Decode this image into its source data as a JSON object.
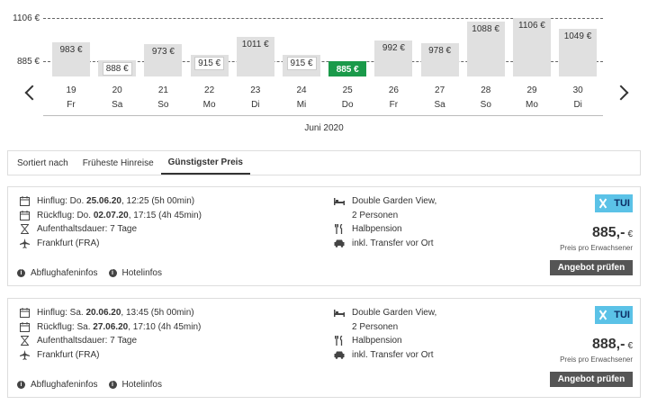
{
  "chart_data": {
    "type": "bar",
    "y_ticks": [
      "1106 €",
      "885 €"
    ],
    "ylim": [
      830,
      1106
    ],
    "selected_index": 6,
    "categories": [
      {
        "day": "19",
        "weekday": "Fr"
      },
      {
        "day": "20",
        "weekday": "Sa"
      },
      {
        "day": "21",
        "weekday": "So"
      },
      {
        "day": "22",
        "weekday": "Mo"
      },
      {
        "day": "23",
        "weekday": "Di"
      },
      {
        "day": "24",
        "weekday": "Mi"
      },
      {
        "day": "25",
        "weekday": "Do"
      },
      {
        "day": "26",
        "weekday": "Fr"
      },
      {
        "day": "27",
        "weekday": "Sa"
      },
      {
        "day": "28",
        "weekday": "So"
      },
      {
        "day": "29",
        "weekday": "Mo"
      },
      {
        "day": "30",
        "weekday": "Di"
      }
    ],
    "values": [
      983,
      888,
      973,
      915,
      1011,
      915,
      885,
      992,
      978,
      1088,
      1106,
      1049
    ],
    "value_labels": [
      "983 €",
      "888 €",
      "973 €",
      "915 €",
      "1011 €",
      "915 €",
      "885 €",
      "992 €",
      "978 €",
      "1088 €",
      "1106 €",
      "1049 €"
    ],
    "xlabel": "Juni 2020",
    "selected_color": "#1a9a4a",
    "bar_color": "#e0e0e0"
  },
  "sort": {
    "label": "Sortiert nach",
    "options": [
      "Früheste Hinreise",
      "Günstigster Preis"
    ],
    "active_index": 1
  },
  "offers": [
    {
      "outbound_prefix": "Hinflug: Do. ",
      "outbound_date": "25.06.20",
      "outbound_suffix": ", 12:25 (5h 00min)",
      "return_prefix": "Rückflug: Do. ",
      "return_date": "02.07.20",
      "return_suffix": ", 17:15 (4h 45min)",
      "stay": "Aufenthaltsdauer: 7 Tage",
      "airport": "Frankfurt (FRA)",
      "room": "Double Garden View,",
      "persons": "2 Personen",
      "board": "Halbpension",
      "transfer": "inkl. Transfer vor Ort",
      "logo_text": "TUI",
      "price": "885,-",
      "currency": "€",
      "price_note": "Preis pro Erwachsener",
      "cta": "Angebot prüfen",
      "airport_info": "Abflughafeninfos",
      "hotel_info": "Hotelinfos"
    },
    {
      "outbound_prefix": "Hinflug: Sa. ",
      "outbound_date": "20.06.20",
      "outbound_suffix": ", 13:45 (5h 00min)",
      "return_prefix": "Rückflug: Sa. ",
      "return_date": "27.06.20",
      "return_suffix": ", 17:10 (4h 45min)",
      "stay": "Aufenthaltsdauer: 7 Tage",
      "airport": "Frankfurt (FRA)",
      "room": "Double Garden View,",
      "persons": "2 Personen",
      "board": "Halbpension",
      "transfer": "inkl. Transfer vor Ort",
      "logo_text": "TUI",
      "price": "888,-",
      "currency": "€",
      "price_note": "Preis pro Erwachsener",
      "cta": "Angebot prüfen",
      "airport_info": "Abflughafeninfos",
      "hotel_info": "Hotelinfos"
    }
  ]
}
